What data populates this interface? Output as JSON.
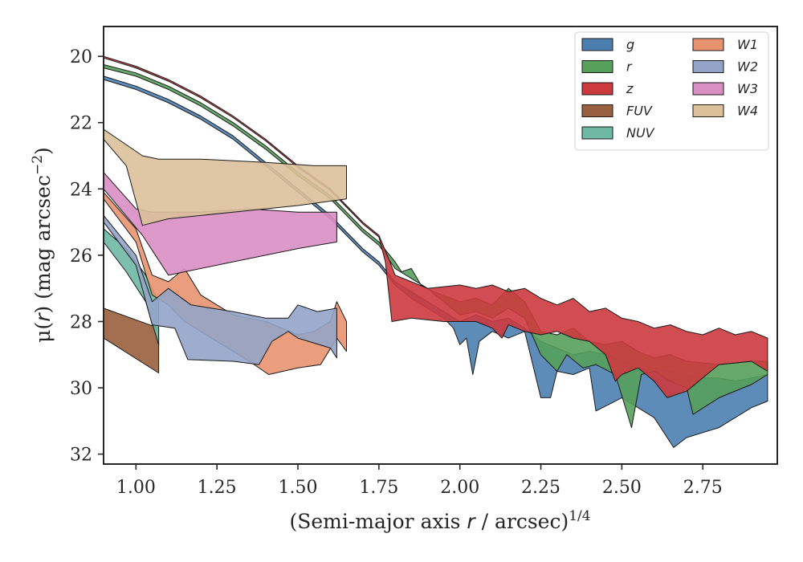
{
  "chart_data": {
    "type": "area",
    "xlabel_pre": "(Semi-major axis ",
    "xlabel_var": "r",
    "xlabel_post": " / arcsec)",
    "xlabel_exp": "1/4",
    "ylabel_pre": "μ(",
    "ylabel_var": "r",
    "ylabel_post": ") (mag arcsec",
    "ylabel_exp": "−2",
    "ylabel_end": ")",
    "xlim": [
      0.9,
      2.98
    ],
    "ylim": [
      32.3,
      19.1
    ],
    "y_inverted": true,
    "x_ticks": [
      1.0,
      1.25,
      1.5,
      1.75,
      2.0,
      2.25,
      2.5,
      2.75
    ],
    "x_tick_labels": [
      "1.00",
      "1.25",
      "1.50",
      "1.75",
      "2.00",
      "2.25",
      "2.50",
      "2.75"
    ],
    "y_ticks": [
      20,
      22,
      24,
      26,
      28,
      30,
      32
    ],
    "y_tick_labels": [
      "20",
      "22",
      "24",
      "26",
      "28",
      "30",
      "32"
    ],
    "grid": false,
    "legend_position": "top-right",
    "legend_columns": 2,
    "series": [
      {
        "name": "g",
        "color": "#4c7fb0",
        "upper": [
          [
            0.9,
            20.6
          ],
          [
            1.0,
            20.9
          ],
          [
            1.1,
            21.3
          ],
          [
            1.2,
            21.8
          ],
          [
            1.3,
            22.4
          ],
          [
            1.4,
            23.2
          ],
          [
            1.5,
            24.0
          ],
          [
            1.6,
            24.8
          ],
          [
            1.65,
            25.3
          ],
          [
            1.7,
            25.8
          ],
          [
            1.75,
            26.2
          ],
          [
            1.8,
            26.8
          ],
          [
            1.85,
            27.1
          ],
          [
            1.9,
            27.4
          ],
          [
            1.95,
            27.7
          ],
          [
            2.0,
            28.0
          ],
          [
            2.05,
            27.8
          ],
          [
            2.1,
            28.0
          ],
          [
            2.15,
            27.9
          ],
          [
            2.2,
            28.2
          ],
          [
            2.25,
            28.6
          ],
          [
            2.3,
            28.8
          ],
          [
            2.35,
            29.0
          ],
          [
            2.4,
            28.9
          ],
          [
            2.45,
            29.0
          ],
          [
            2.5,
            29.2
          ],
          [
            2.55,
            29.3
          ],
          [
            2.6,
            29.4
          ],
          [
            2.65,
            29.5
          ],
          [
            2.7,
            29.6
          ],
          [
            2.75,
            29.7
          ],
          [
            2.8,
            29.7
          ],
          [
            2.85,
            29.8
          ],
          [
            2.9,
            29.7
          ],
          [
            2.95,
            29.6
          ]
        ],
        "lower": [
          [
            0.9,
            20.7
          ],
          [
            1.0,
            21.0
          ],
          [
            1.1,
            21.4
          ],
          [
            1.2,
            21.9
          ],
          [
            1.3,
            22.5
          ],
          [
            1.4,
            23.3
          ],
          [
            1.5,
            24.1
          ],
          [
            1.6,
            24.9
          ],
          [
            1.65,
            25.4
          ],
          [
            1.7,
            25.9
          ],
          [
            1.75,
            26.3
          ],
          [
            1.8,
            26.9
          ],
          [
            1.85,
            27.3
          ],
          [
            1.9,
            27.6
          ],
          [
            1.95,
            27.9
          ],
          [
            1.98,
            28.2
          ],
          [
            2.0,
            28.7
          ],
          [
            2.02,
            28.5
          ],
          [
            2.04,
            29.6
          ],
          [
            2.06,
            28.6
          ],
          [
            2.1,
            28.3
          ],
          [
            2.15,
            28.5
          ],
          [
            2.2,
            28.3
          ],
          [
            2.25,
            30.3
          ],
          [
            2.28,
            30.3
          ],
          [
            2.3,
            29.5
          ],
          [
            2.35,
            29.6
          ],
          [
            2.4,
            29.4
          ],
          [
            2.42,
            30.7
          ],
          [
            2.46,
            30.5
          ],
          [
            2.5,
            30.3
          ],
          [
            2.55,
            30.6
          ],
          [
            2.6,
            30.9
          ],
          [
            2.66,
            31.8
          ],
          [
            2.7,
            31.5
          ],
          [
            2.8,
            31.2
          ],
          [
            2.9,
            30.6
          ],
          [
            2.95,
            30.4
          ]
        ]
      },
      {
        "name": "r",
        "color": "#55a05a",
        "upper": [
          [
            0.9,
            20.25
          ],
          [
            1.0,
            20.5
          ],
          [
            1.1,
            20.9
          ],
          [
            1.2,
            21.4
          ],
          [
            1.3,
            22.0
          ],
          [
            1.4,
            22.7
          ],
          [
            1.5,
            23.5
          ],
          [
            1.6,
            24.2
          ],
          [
            1.65,
            24.7
          ],
          [
            1.7,
            25.2
          ],
          [
            1.75,
            25.6
          ],
          [
            1.8,
            26.2
          ],
          [
            1.82,
            26.5
          ],
          [
            1.85,
            26.4
          ],
          [
            1.88,
            26.9
          ],
          [
            1.92,
            27.1
          ],
          [
            2.0,
            27.4
          ],
          [
            2.05,
            27.3
          ],
          [
            2.1,
            27.5
          ],
          [
            2.15,
            27.0
          ],
          [
            2.2,
            27.4
          ],
          [
            2.25,
            28.3
          ],
          [
            2.3,
            28.4
          ],
          [
            2.35,
            28.2
          ],
          [
            2.4,
            28.6
          ],
          [
            2.45,
            28.7
          ],
          [
            2.5,
            28.6
          ],
          [
            2.55,
            28.9
          ],
          [
            2.6,
            29.1
          ],
          [
            2.65,
            29.0
          ],
          [
            2.7,
            29.2
          ],
          [
            2.8,
            29.3
          ],
          [
            2.9,
            29.2
          ],
          [
            2.95,
            29.2
          ]
        ],
        "lower": [
          [
            0.9,
            20.35
          ],
          [
            1.0,
            20.6
          ],
          [
            1.1,
            21.0
          ],
          [
            1.2,
            21.5
          ],
          [
            1.3,
            22.1
          ],
          [
            1.4,
            22.8
          ],
          [
            1.5,
            23.6
          ],
          [
            1.6,
            24.3
          ],
          [
            1.65,
            24.8
          ],
          [
            1.7,
            25.3
          ],
          [
            1.75,
            25.7
          ],
          [
            1.8,
            26.4
          ],
          [
            1.85,
            26.7
          ],
          [
            1.9,
            27.0
          ],
          [
            1.95,
            27.4
          ],
          [
            2.0,
            27.8
          ],
          [
            2.05,
            27.7
          ],
          [
            2.1,
            27.9
          ],
          [
            2.15,
            27.6
          ],
          [
            2.2,
            27.9
          ],
          [
            2.25,
            29.0
          ],
          [
            2.3,
            29.5
          ],
          [
            2.33,
            29.0
          ],
          [
            2.38,
            29.4
          ],
          [
            2.42,
            29.3
          ],
          [
            2.48,
            29.6
          ],
          [
            2.53,
            31.2
          ],
          [
            2.56,
            29.6
          ],
          [
            2.6,
            29.5
          ],
          [
            2.65,
            29.8
          ],
          [
            2.7,
            30.0
          ],
          [
            2.72,
            30.8
          ],
          [
            2.8,
            30.3
          ],
          [
            2.9,
            29.9
          ],
          [
            2.95,
            29.6
          ]
        ]
      },
      {
        "name": "z",
        "color": "#cc3a3e",
        "upper": [
          [
            0.9,
            20.0
          ],
          [
            1.0,
            20.3
          ],
          [
            1.1,
            20.7
          ],
          [
            1.2,
            21.2
          ],
          [
            1.3,
            21.8
          ],
          [
            1.4,
            22.5
          ],
          [
            1.5,
            23.3
          ],
          [
            1.6,
            24.0
          ],
          [
            1.65,
            24.5
          ],
          [
            1.7,
            25.0
          ],
          [
            1.75,
            25.4
          ],
          [
            1.78,
            26.1
          ],
          [
            1.8,
            26.6
          ],
          [
            1.85,
            26.8
          ],
          [
            1.9,
            27.0
          ],
          [
            2.0,
            26.9
          ],
          [
            2.05,
            27.0
          ],
          [
            2.1,
            26.9
          ],
          [
            2.15,
            27.1
          ],
          [
            2.2,
            27.0
          ],
          [
            2.25,
            27.3
          ],
          [
            2.3,
            27.5
          ],
          [
            2.35,
            27.3
          ],
          [
            2.4,
            27.7
          ],
          [
            2.45,
            27.6
          ],
          [
            2.5,
            27.9
          ],
          [
            2.55,
            28.0
          ],
          [
            2.6,
            28.2
          ],
          [
            2.65,
            28.1
          ],
          [
            2.7,
            28.3
          ],
          [
            2.75,
            28.4
          ],
          [
            2.8,
            28.2
          ],
          [
            2.85,
            28.4
          ],
          [
            2.9,
            28.3
          ],
          [
            2.95,
            28.5
          ]
        ],
        "lower": [
          [
            0.9,
            20.05
          ],
          [
            1.0,
            20.35
          ],
          [
            1.1,
            20.75
          ],
          [
            1.2,
            21.25
          ],
          [
            1.3,
            21.85
          ],
          [
            1.4,
            22.55
          ],
          [
            1.5,
            23.35
          ],
          [
            1.6,
            24.05
          ],
          [
            1.65,
            24.55
          ],
          [
            1.7,
            25.05
          ],
          [
            1.75,
            25.45
          ],
          [
            1.77,
            26.2
          ],
          [
            1.79,
            28.0
          ],
          [
            1.85,
            27.9
          ],
          [
            1.95,
            28.0
          ],
          [
            2.05,
            28.0
          ],
          [
            2.1,
            28.2
          ],
          [
            2.13,
            28.5
          ],
          [
            2.15,
            28.1
          ],
          [
            2.2,
            28.3
          ],
          [
            2.25,
            28.4
          ],
          [
            2.3,
            28.3
          ],
          [
            2.35,
            28.5
          ],
          [
            2.4,
            28.6
          ],
          [
            2.45,
            29.0
          ],
          [
            2.48,
            29.8
          ],
          [
            2.5,
            29.6
          ],
          [
            2.55,
            29.4
          ],
          [
            2.6,
            29.8
          ],
          [
            2.64,
            30.3
          ],
          [
            2.7,
            30.1
          ],
          [
            2.8,
            29.3
          ],
          [
            2.9,
            29.2
          ],
          [
            2.95,
            29.5
          ]
        ]
      },
      {
        "name": "FUV",
        "color": "#98603e",
        "upper": [
          [
            0.9,
            27.6
          ],
          [
            1.07,
            28.2
          ]
        ],
        "lower": [
          [
            0.9,
            28.5
          ],
          [
            1.07,
            29.55
          ]
        ]
      },
      {
        "name": "NUV",
        "color": "#6fb8a4",
        "upper": [
          [
            0.9,
            25.2
          ],
          [
            0.97,
            25.8
          ],
          [
            1.03,
            26.6
          ],
          [
            1.07,
            27.4
          ]
        ],
        "lower": [
          [
            0.9,
            25.6
          ],
          [
            0.97,
            26.5
          ],
          [
            1.03,
            27.4
          ],
          [
            1.07,
            28.7
          ]
        ]
      },
      {
        "name": "W1",
        "color": "#e8936f",
        "upper": [
          [
            0.9,
            24.1
          ],
          [
            1.0,
            25.2
          ],
          [
            1.05,
            26.6
          ],
          [
            1.1,
            26.8
          ],
          [
            1.15,
            26.4
          ],
          [
            1.2,
            27.2
          ],
          [
            1.3,
            27.8
          ],
          [
            1.4,
            28.0
          ],
          [
            1.5,
            28.4
          ],
          [
            1.55,
            28.3
          ],
          [
            1.6,
            28.0
          ],
          [
            1.62,
            27.4
          ],
          [
            1.65,
            28.0
          ]
        ],
        "lower": [
          [
            0.9,
            24.3
          ],
          [
            1.0,
            25.6
          ],
          [
            1.05,
            27.2
          ],
          [
            1.1,
            27.5
          ],
          [
            1.15,
            28.0
          ],
          [
            1.2,
            28.3
          ],
          [
            1.3,
            28.9
          ],
          [
            1.35,
            29.2
          ],
          [
            1.41,
            29.6
          ],
          [
            1.5,
            29.4
          ],
          [
            1.57,
            29.3
          ],
          [
            1.62,
            28.5
          ],
          [
            1.65,
            28.9
          ]
        ]
      },
      {
        "name": "W2",
        "color": "#93a4c8",
        "upper": [
          [
            0.9,
            24.8
          ],
          [
            1.0,
            26.0
          ],
          [
            1.05,
            27.4
          ],
          [
            1.1,
            27.0
          ],
          [
            1.17,
            27.5
          ],
          [
            1.3,
            27.7
          ],
          [
            1.4,
            27.9
          ],
          [
            1.47,
            27.9
          ],
          [
            1.5,
            27.5
          ],
          [
            1.56,
            27.7
          ],
          [
            1.62,
            27.6
          ]
        ],
        "lower": [
          [
            0.9,
            25.0
          ],
          [
            1.0,
            26.3
          ],
          [
            1.05,
            28.1
          ],
          [
            1.12,
            28.2
          ],
          [
            1.16,
            29.15
          ],
          [
            1.3,
            29.2
          ],
          [
            1.38,
            29.3
          ],
          [
            1.42,
            28.6
          ],
          [
            1.47,
            28.3
          ],
          [
            1.5,
            28.5
          ],
          [
            1.6,
            28.8
          ],
          [
            1.62,
            29.1
          ]
        ]
      },
      {
        "name": "W3",
        "color": "#d98ec4",
        "upper": [
          [
            0.9,
            23.5
          ],
          [
            1.0,
            24.6
          ],
          [
            1.05,
            24.7
          ],
          [
            1.1,
            24.7
          ],
          [
            1.2,
            24.7
          ],
          [
            1.35,
            24.6
          ],
          [
            1.5,
            24.7
          ],
          [
            1.62,
            24.7
          ]
        ],
        "lower": [
          [
            0.9,
            24.0
          ],
          [
            1.02,
            25.4
          ],
          [
            1.1,
            26.6
          ],
          [
            1.3,
            26.2
          ],
          [
            1.5,
            25.8
          ],
          [
            1.62,
            25.6
          ]
        ]
      },
      {
        "name": "W4",
        "color": "#dcc09a",
        "upper": [
          [
            0.9,
            22.2
          ],
          [
            1.02,
            23.0
          ],
          [
            1.07,
            23.1
          ],
          [
            1.2,
            23.1
          ],
          [
            1.4,
            23.2
          ],
          [
            1.55,
            23.3
          ],
          [
            1.65,
            23.3
          ]
        ],
        "lower": [
          [
            0.9,
            22.5
          ],
          [
            0.97,
            23.3
          ],
          [
            1.02,
            25.1
          ],
          [
            1.1,
            24.9
          ],
          [
            1.3,
            24.7
          ],
          [
            1.5,
            24.5
          ],
          [
            1.65,
            24.3
          ]
        ]
      }
    ]
  }
}
